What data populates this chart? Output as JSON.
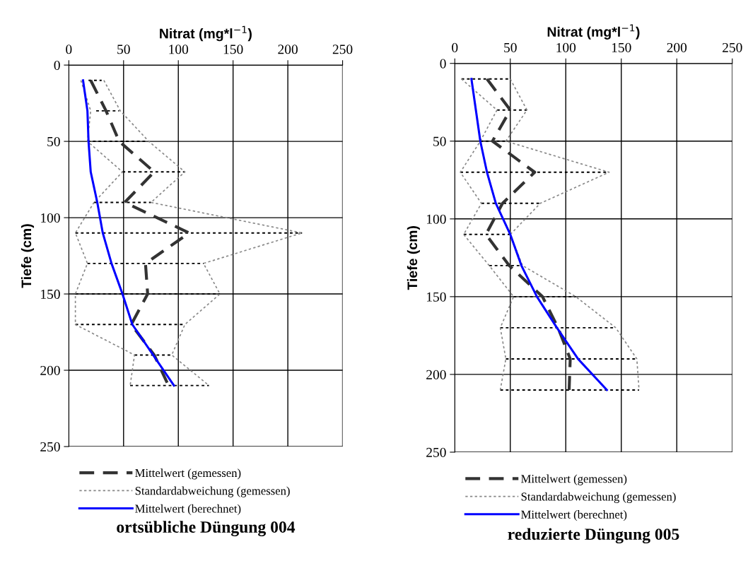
{
  "chart_data": [
    {
      "type": "line",
      "title": "ortsübliche Düngung 004",
      "xlabel": "Nitrat (mg*l$^{−1}$)",
      "ylabel": "Tiefe (cm)",
      "xlim": [
        0,
        250
      ],
      "xticks": [
        0,
        50,
        100,
        150,
        200,
        250
      ],
      "ylim": [
        250,
        0
      ],
      "yticks": [
        0,
        50,
        100,
        150,
        200,
        250
      ],
      "grid": true,
      "legend": "bottom",
      "marker": "none",
      "series": [
        {
          "name": "Mittelwert (gemessen)",
          "color": "#333333",
          "line_style": "dashed",
          "x": [
            20,
            34,
            46,
            78,
            51,
            110,
            70,
            72,
            57,
            78,
            91
          ],
          "values": [
            10,
            30,
            50,
            70,
            90,
            110,
            130,
            150,
            170,
            190,
            210
          ],
          "xerrors": [
            [
              18,
              30
            ],
            [
              25,
              46
            ],
            [
              17,
              73
            ],
            [
              49,
              106
            ],
            [
              23,
              75
            ],
            [
              6,
              213
            ],
            [
              17,
              123
            ],
            [
              6,
              138
            ],
            [
              6,
              106
            ],
            [
              60,
              94
            ],
            [
              56,
              128
            ]
          ]
        },
        {
          "name": "Standardabweichung (gemessen)",
          "color": "#888888",
          "line_style": "dotted",
          "x": [
            32,
            47,
            73,
            106,
            75,
            213,
            123,
            138,
            106,
            94,
            128
          ],
          "values": [
            10,
            30,
            50,
            70,
            90,
            110,
            130,
            150,
            170,
            190,
            210
          ]
        },
        {
          "color": "#888888",
          "line_style": "dotted",
          "x": [
            11,
            20,
            17,
            49,
            23,
            6,
            17,
            6,
            6,
            60,
            56
          ],
          "values": [
            10,
            30,
            50,
            70,
            90,
            110,
            130,
            150,
            170,
            190,
            210
          ]
        },
        {
          "name": "Mittelwert (berechnet)",
          "color": "#0000ff",
          "line_style": "solid",
          "x": [
            13,
            17,
            18,
            20,
            26,
            31,
            39,
            49,
            58,
            77,
            96
          ],
          "values": [
            10,
            30,
            50,
            70,
            90,
            110,
            130,
            150,
            170,
            190,
            210
          ]
        }
      ]
    },
    {
      "type": "line",
      "title": "reduzierte Düngung 005",
      "xlabel": "Nitrat (mg*l$^{−1}$)",
      "ylabel": "Tiefe (cm)",
      "xlim": [
        0,
        250
      ],
      "xticks": [
        0,
        50,
        100,
        150,
        200,
        250
      ],
      "ylim": [
        250,
        0
      ],
      "yticks": [
        0,
        50,
        100,
        150,
        200,
        250
      ],
      "grid": true,
      "legend": "bottom",
      "marker": "none",
      "series": [
        {
          "name": "Mittelwert (gemessen)",
          "color": "#333333",
          "line_style": "dashed",
          "x": [
            29,
            50,
            34,
            72,
            43,
            28,
            49,
            79,
            93,
            104,
            103
          ],
          "values": [
            10,
            30,
            50,
            70,
            90,
            110,
            130,
            150,
            170,
            190,
            210
          ],
          "xerrors": [
            [
              6,
              50
            ],
            [
              38,
              65
            ],
            [
              23,
              46
            ],
            [
              5,
              139
            ],
            [
              24,
              77
            ],
            [
              8,
              50
            ],
            [
              31,
              61
            ],
            [
              53,
              109
            ],
            [
              41,
              145
            ],
            [
              46,
              164
            ],
            [
              41,
              166
            ]
          ]
        },
        {
          "name": "Standardabweichung (gemessen)",
          "color": "#888888",
          "line_style": "dotted",
          "x": [
            50,
            65,
            46,
            139,
            77,
            50,
            61,
            109,
            145,
            164,
            166
          ],
          "values": [
            10,
            30,
            50,
            70,
            90,
            110,
            130,
            150,
            170,
            190,
            210
          ]
        },
        {
          "color": "#888888",
          "line_style": "dotted",
          "x": [
            6,
            38,
            23,
            5,
            24,
            8,
            31,
            53,
            41,
            46,
            41
          ],
          "values": [
            10,
            30,
            50,
            70,
            90,
            110,
            130,
            150,
            170,
            190,
            210
          ]
        },
        {
          "name": "Mittelwert (berechnet)",
          "color": "#0000ff",
          "line_style": "solid",
          "x": [
            15,
            19,
            23,
            29,
            37,
            50,
            60,
            74,
            92,
            111,
            137
          ],
          "values": [
            10,
            30,
            50,
            70,
            90,
            110,
            130,
            150,
            170,
            190,
            210
          ]
        }
      ]
    }
  ]
}
